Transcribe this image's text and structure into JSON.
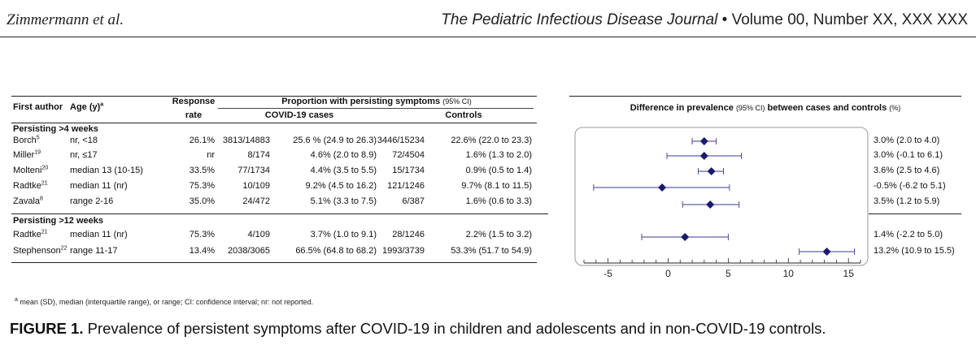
{
  "header": {
    "authors": "Zimmermann et al.",
    "journal": "The Pediatric Infectious Disease Journal",
    "bullet": "•",
    "volume": "Volume 00, Number XX, XXX XXX"
  },
  "table": {
    "col_first_author": "First author",
    "col_age": "Age (y)",
    "col_age_sup": "a",
    "col_response_1": "Response",
    "col_response_2": "rate",
    "col_proportion": "Proportion  with persisting symptoms",
    "col_proportion_ci": "(95% CI)",
    "col_cases": "COVID-19 cases",
    "col_controls": "Controls",
    "col_difference": "Difference in prevalence",
    "col_difference_ci": "(95% CI)",
    "col_difference_rest": "between cases and controls",
    "col_difference_unit": "(%)",
    "section1": "Persisting >4 weeks",
    "section2": "Persisting >12 weeks",
    "rows": [
      {
        "author": "Borch",
        "ref": "5",
        "age": "nr, <18",
        "rate": "26.1%",
        "cases_n": "3813/14883",
        "cases_pct": "25.6 % (24.9 to 26.3)",
        "ctrl_n": "3446/15234",
        "ctrl_pct": "22.6% (22.0 to 23.3)",
        "diff": "3.0% (2.0 to 4.0)"
      },
      {
        "author": "Miller",
        "ref": "19",
        "age": "nr, ≤17",
        "rate": "nr",
        "cases_n": "8/174",
        "cases_pct": "4.6% (2.0 to 8.9)",
        "ctrl_n": "72/4504",
        "ctrl_pct": "1.6% (1.3 to 2.0)",
        "diff": "3.0% (-0.1 to 6.1)"
      },
      {
        "author": "Molteni",
        "ref": "20",
        "age": "median 13 (10-15)",
        "rate": "33.5%",
        "cases_n": "77/1734",
        "cases_pct": "4.4% (3.5 to 5.5)",
        "ctrl_n": "15/1734",
        "ctrl_pct": "0.9% (0.5 to 1.4)",
        "diff": "3.6% (2.5 to 4.6)"
      },
      {
        "author": "Radtke",
        "ref": "21",
        "age": "median 11 (nr)",
        "rate": "75.3%",
        "cases_n": "10/109",
        "cases_pct": "9.2% (4.5 to 16.2)",
        "ctrl_n": "121/1246",
        "ctrl_pct": "9.7% (8.1 to 11.5)",
        "diff": "-0.5% (-6.2 to 5.1)"
      },
      {
        "author": "Zavala",
        "ref": "8",
        "age": "range 2-16",
        "rate": "35.0%",
        "cases_n": "24/472",
        "cases_pct": "5.1% (3.3 to 7.5)",
        "ctrl_n": "6/387",
        "ctrl_pct": "1.6% (0.6 to 3.3)",
        "diff": "3.5% (1.2 to 5.9)"
      },
      {
        "author": "Radtke",
        "ref": "21",
        "age": "median 11 (nr)",
        "rate": "75.3%",
        "cases_n": "4/109",
        "cases_pct": "3.7% (1.0 to 9.1)",
        "ctrl_n": "28/1246",
        "ctrl_pct": "2.2% (1.5 to 3.2)",
        "diff": "1.4% (-2.2 to 5.0)"
      },
      {
        "author": "Stephenson",
        "ref": "22",
        "age": "range 11-17",
        "rate": "13.4%",
        "cases_n": "2038/3065",
        "cases_pct": "66.5% (64.8 to 68.2)",
        "ctrl_n": "1993/3739",
        "ctrl_pct": "53.3% (51.7 to 54.9)",
        "diff": "13.2% (10.9 to 15.5)"
      }
    ]
  },
  "chart_data": {
    "type": "forest",
    "xlabel": "Difference in prevalence (95% CI) between cases and controls (%)",
    "xlim": [
      -7,
      16
    ],
    "xticks": [
      "-5",
      "0",
      "5",
      "10",
      "15"
    ],
    "xtick_values": [
      -5,
      0,
      5,
      10,
      15
    ],
    "points": [
      {
        "study": "Borch",
        "est": 3.0,
        "lo": 2.0,
        "hi": 4.0
      },
      {
        "study": "Miller",
        "est": 3.0,
        "lo": -0.1,
        "hi": 6.1
      },
      {
        "study": "Molteni",
        "est": 3.6,
        "lo": 2.5,
        "hi": 4.6
      },
      {
        "study": "Radtke",
        "est": -0.5,
        "lo": -6.2,
        "hi": 5.1
      },
      {
        "study": "Zavala",
        "est": 3.5,
        "lo": 1.2,
        "hi": 5.9
      },
      {
        "study": "Radtke",
        "est": 1.4,
        "lo": -2.2,
        "hi": 5.0
      },
      {
        "study": "Stephenson",
        "est": 13.2,
        "lo": 10.9,
        "hi": 15.5
      }
    ],
    "marker_color": "#1a1a6e"
  },
  "footnote": {
    "sup": "a",
    "text": "mean (SD), median (interquartile range), or range; CI: confidence interval; nr: not reported."
  },
  "caption": {
    "label": "FIGURE 1.",
    "text": "Prevalence of persistent symptoms after COVID-19 in children and adolescents and in non-COVID-19 controls."
  }
}
